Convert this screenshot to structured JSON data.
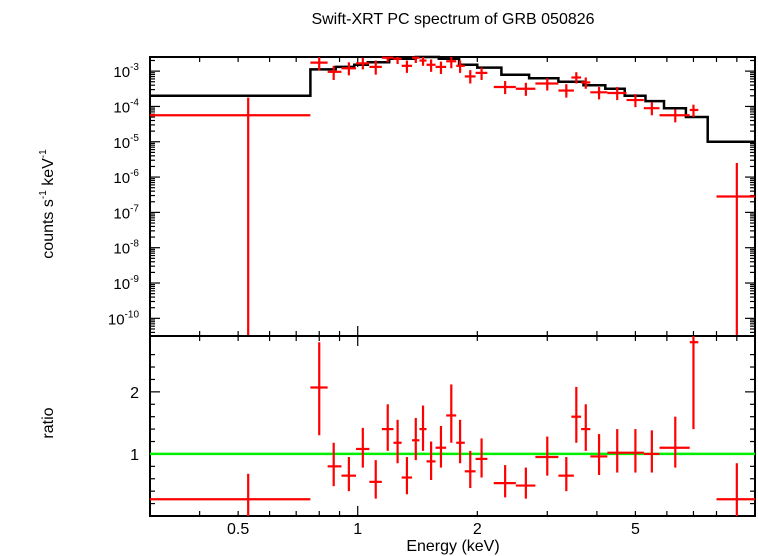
{
  "chart_data": [
    {
      "type": "scatter",
      "panel": "spectrum",
      "title": "Swift-XRT PC spectrum of GRB 050826",
      "ylabel_base": "counts s",
      "ylabel_sup1": "-1",
      "ylabel_mid": " keV",
      "ylabel_sup2": "-1",
      "x_scale": "log",
      "y_scale": "log",
      "xlim": [
        0.3,
        10.0
      ],
      "ylim_log10": [
        -10.5,
        -2.6
      ],
      "y_ticks": [
        {
          "base": "10",
          "exp": "-3",
          "log10": -3
        },
        {
          "base": "10",
          "exp": "-4",
          "log10": -4
        },
        {
          "base": "10",
          "exp": "-5",
          "log10": -5
        },
        {
          "base": "10",
          "exp": "-6",
          "log10": -6
        },
        {
          "base": "10",
          "exp": "-7",
          "log10": -7
        },
        {
          "base": "10",
          "exp": "-8",
          "log10": -8
        },
        {
          "base": "10",
          "exp": "-9",
          "log10": -9
        },
        {
          "base": "10",
          "exp": "-10",
          "log10": -10
        }
      ],
      "data_color": "#ff0000",
      "model_color": "#000000",
      "model_step": [
        [
          0.3,
          -3.7
        ],
        [
          0.76,
          -2.95
        ],
        [
          0.88,
          -2.88
        ],
        [
          0.98,
          -2.82
        ],
        [
          1.06,
          -2.75
        ],
        [
          1.2,
          -2.65
        ],
        [
          1.4,
          -2.6
        ],
        [
          1.6,
          -2.65
        ],
        [
          1.8,
          -2.82
        ],
        [
          2.0,
          -2.9
        ],
        [
          2.3,
          -3.1
        ],
        [
          2.7,
          -3.2
        ],
        [
          3.2,
          -3.3
        ],
        [
          3.7,
          -3.4
        ],
        [
          4.2,
          -3.5
        ],
        [
          4.7,
          -3.7
        ],
        [
          5.3,
          -3.85
        ],
        [
          5.9,
          -4.05
        ],
        [
          6.7,
          -4.3
        ],
        [
          7.6,
          -5.0
        ],
        [
          10.0,
          -5.0
        ]
      ],
      "points": [
        {
          "x": 0.53,
          "xlo": 0.3,
          "xhi": 0.76,
          "y": -4.25,
          "ylo": -10.5,
          "yhi": -3.75
        },
        {
          "x": 0.8,
          "xlo": 0.76,
          "xhi": 0.84,
          "y": -2.76,
          "ylo": -2.98,
          "yhi": -2.6
        },
        {
          "x": 0.87,
          "xlo": 0.84,
          "xhi": 0.91,
          "y": -3.02,
          "ylo": -3.25,
          "yhi": -2.85
        },
        {
          "x": 0.95,
          "xlo": 0.91,
          "xhi": 0.99,
          "y": -2.92,
          "ylo": -3.12,
          "yhi": -2.75
        },
        {
          "x": 1.03,
          "xlo": 0.99,
          "xhi": 1.07,
          "y": -2.78,
          "ylo": -2.95,
          "yhi": -2.62
        },
        {
          "x": 1.11,
          "xlo": 1.07,
          "xhi": 1.15,
          "y": -2.88,
          "ylo": -3.1,
          "yhi": -2.7
        },
        {
          "x": 1.19,
          "xlo": 1.15,
          "xhi": 1.23,
          "y": -2.62,
          "ylo": -2.75,
          "yhi": -2.6
        },
        {
          "x": 1.26,
          "xlo": 1.23,
          "xhi": 1.29,
          "y": -2.65,
          "ylo": -2.8,
          "yhi": -2.6
        },
        {
          "x": 1.33,
          "xlo": 1.29,
          "xhi": 1.37,
          "y": -2.85,
          "ylo": -3.05,
          "yhi": -2.7
        },
        {
          "x": 1.4,
          "xlo": 1.37,
          "xhi": 1.43,
          "y": -2.62,
          "ylo": -2.77,
          "yhi": -2.6
        },
        {
          "x": 1.46,
          "xlo": 1.43,
          "xhi": 1.49,
          "y": -2.7,
          "ylo": -2.85,
          "yhi": -2.6
        },
        {
          "x": 1.53,
          "xlo": 1.49,
          "xhi": 1.57,
          "y": -2.82,
          "ylo": -3.02,
          "yhi": -2.67
        },
        {
          "x": 1.62,
          "xlo": 1.57,
          "xhi": 1.67,
          "y": -2.88,
          "ylo": -3.08,
          "yhi": -2.73
        },
        {
          "x": 1.72,
          "xlo": 1.67,
          "xhi": 1.77,
          "y": -2.72,
          "ylo": -2.92,
          "yhi": -2.6
        },
        {
          "x": 1.81,
          "xlo": 1.77,
          "xhi": 1.86,
          "y": -2.85,
          "ylo": -3.05,
          "yhi": -2.7
        },
        {
          "x": 1.92,
          "xlo": 1.86,
          "xhi": 1.98,
          "y": -3.15,
          "ylo": -3.35,
          "yhi": -2.97
        },
        {
          "x": 2.05,
          "xlo": 1.98,
          "xhi": 2.12,
          "y": -3.05,
          "ylo": -3.25,
          "yhi": -2.9
        },
        {
          "x": 2.35,
          "xlo": 2.2,
          "xhi": 2.5,
          "y": -3.45,
          "ylo": -3.65,
          "yhi": -3.28
        },
        {
          "x": 2.65,
          "xlo": 2.5,
          "xhi": 2.8,
          "y": -3.5,
          "ylo": -3.7,
          "yhi": -3.33
        },
        {
          "x": 3.0,
          "xlo": 2.8,
          "xhi": 3.2,
          "y": -3.35,
          "ylo": -3.55,
          "yhi": -3.2
        },
        {
          "x": 3.35,
          "xlo": 3.2,
          "xhi": 3.5,
          "y": -3.55,
          "ylo": -3.75,
          "yhi": -3.37
        },
        {
          "x": 3.55,
          "xlo": 3.45,
          "xhi": 3.65,
          "y": -3.18,
          "ylo": -3.35,
          "yhi": -3.03
        },
        {
          "x": 3.75,
          "xlo": 3.65,
          "xhi": 3.85,
          "y": -3.32,
          "ylo": -3.5,
          "yhi": -3.18
        },
        {
          "x": 4.05,
          "xlo": 3.85,
          "xhi": 4.25,
          "y": -3.6,
          "ylo": -3.8,
          "yhi": -3.45
        },
        {
          "x": 4.5,
          "xlo": 4.25,
          "xhi": 4.75,
          "y": -3.62,
          "ylo": -3.82,
          "yhi": -3.45
        },
        {
          "x": 5.0,
          "xlo": 4.75,
          "xhi": 5.25,
          "y": -3.82,
          "ylo": -4.02,
          "yhi": -3.65
        },
        {
          "x": 5.5,
          "xlo": 5.25,
          "xhi": 5.75,
          "y": -4.05,
          "ylo": -4.25,
          "yhi": -3.88
        },
        {
          "x": 6.3,
          "xlo": 5.75,
          "xhi": 6.85,
          "y": -4.25,
          "ylo": -4.45,
          "yhi": -4.08
        },
        {
          "x": 7.0,
          "xlo": 6.85,
          "xhi": 7.2,
          "y": -4.1,
          "ylo": -4.3,
          "yhi": -3.95
        },
        {
          "x": 9.0,
          "xlo": 8.0,
          "xhi": 10.0,
          "y": -6.55,
          "ylo": -10.5,
          "yhi": -5.6
        }
      ]
    },
    {
      "type": "scatter",
      "panel": "ratio",
      "xlabel": "Energy (keV)",
      "ylabel": "ratio",
      "x_scale": "log",
      "xlim": [
        0.3,
        10.0
      ],
      "ylim": [
        0.0,
        2.9
      ],
      "x_ticks": [
        {
          "label": "0.5",
          "value": 0.5
        },
        {
          "label": "1",
          "value": 1
        },
        {
          "label": "2",
          "value": 2
        },
        {
          "label": "5",
          "value": 5
        }
      ],
      "y_ticks": [
        {
          "label": "1",
          "value": 1
        },
        {
          "label": "2",
          "value": 2
        }
      ],
      "reference_line": 1.0,
      "reference_color": "#00ee00",
      "data_color": "#ff0000",
      "points": [
        {
          "x": 0.53,
          "xlo": 0.3,
          "xhi": 0.76,
          "y": 0.27,
          "ylo": 0.0,
          "yhi": 0.68
        },
        {
          "x": 0.8,
          "xlo": 0.76,
          "xhi": 0.84,
          "y": 2.07,
          "ylo": 1.3,
          "yhi": 2.8
        },
        {
          "x": 0.87,
          "xlo": 0.84,
          "xhi": 0.91,
          "y": 0.8,
          "ylo": 0.48,
          "yhi": 1.18
        },
        {
          "x": 0.95,
          "xlo": 0.91,
          "xhi": 0.99,
          "y": 0.65,
          "ylo": 0.4,
          "yhi": 0.95
        },
        {
          "x": 1.03,
          "xlo": 0.99,
          "xhi": 1.07,
          "y": 1.08,
          "ylo": 0.78,
          "yhi": 1.42
        },
        {
          "x": 1.11,
          "xlo": 1.07,
          "xhi": 1.15,
          "y": 0.55,
          "ylo": 0.28,
          "yhi": 0.9
        },
        {
          "x": 1.19,
          "xlo": 1.15,
          "xhi": 1.23,
          "y": 1.4,
          "ylo": 1.05,
          "yhi": 1.8
        },
        {
          "x": 1.26,
          "xlo": 1.23,
          "xhi": 1.29,
          "y": 1.18,
          "ylo": 0.85,
          "yhi": 1.55
        },
        {
          "x": 1.33,
          "xlo": 1.29,
          "xhi": 1.37,
          "y": 0.62,
          "ylo": 0.35,
          "yhi": 0.95
        },
        {
          "x": 1.4,
          "xlo": 1.37,
          "xhi": 1.43,
          "y": 1.22,
          "ylo": 0.9,
          "yhi": 1.58
        },
        {
          "x": 1.46,
          "xlo": 1.43,
          "xhi": 1.49,
          "y": 1.4,
          "ylo": 1.05,
          "yhi": 1.78
        },
        {
          "x": 1.53,
          "xlo": 1.49,
          "xhi": 1.57,
          "y": 0.88,
          "ylo": 0.58,
          "yhi": 1.2
        },
        {
          "x": 1.62,
          "xlo": 1.57,
          "xhi": 1.67,
          "y": 1.1,
          "ylo": 0.78,
          "yhi": 1.45
        },
        {
          "x": 1.72,
          "xlo": 1.67,
          "xhi": 1.77,
          "y": 1.62,
          "ylo": 1.18,
          "yhi": 2.12
        },
        {
          "x": 1.81,
          "xlo": 1.77,
          "xhi": 1.86,
          "y": 1.18,
          "ylo": 0.85,
          "yhi": 1.55
        },
        {
          "x": 1.92,
          "xlo": 1.86,
          "xhi": 1.98,
          "y": 0.72,
          "ylo": 0.45,
          "yhi": 1.05
        },
        {
          "x": 2.05,
          "xlo": 1.98,
          "xhi": 2.12,
          "y": 0.92,
          "ylo": 0.62,
          "yhi": 1.25
        },
        {
          "x": 2.35,
          "xlo": 2.2,
          "xhi": 2.5,
          "y": 0.53,
          "ylo": 0.3,
          "yhi": 0.82
        },
        {
          "x": 2.65,
          "xlo": 2.5,
          "xhi": 2.8,
          "y": 0.49,
          "ylo": 0.28,
          "yhi": 0.78
        },
        {
          "x": 3.0,
          "xlo": 2.8,
          "xhi": 3.2,
          "y": 0.95,
          "ylo": 0.65,
          "yhi": 1.28
        },
        {
          "x": 3.35,
          "xlo": 3.2,
          "xhi": 3.5,
          "y": 0.65,
          "ylo": 0.4,
          "yhi": 0.95
        },
        {
          "x": 3.55,
          "xlo": 3.45,
          "xhi": 3.65,
          "y": 1.6,
          "ylo": 1.18,
          "yhi": 2.08
        },
        {
          "x": 3.75,
          "xlo": 3.65,
          "xhi": 3.85,
          "y": 1.4,
          "ylo": 1.05,
          "yhi": 1.8
        },
        {
          "x": 4.05,
          "xlo": 3.85,
          "xhi": 4.25,
          "y": 0.96,
          "ylo": 0.66,
          "yhi": 1.32
        },
        {
          "x": 4.5,
          "xlo": 4.25,
          "xhi": 4.75,
          "y": 1.02,
          "ylo": 0.7,
          "yhi": 1.4
        },
        {
          "x": 5.0,
          "xlo": 4.75,
          "xhi": 5.25,
          "y": 1.02,
          "ylo": 0.7,
          "yhi": 1.4
        },
        {
          "x": 5.5,
          "xlo": 5.25,
          "xhi": 5.75,
          "y": 1.0,
          "ylo": 0.7,
          "yhi": 1.38
        },
        {
          "x": 6.3,
          "xlo": 5.75,
          "xhi": 6.85,
          "y": 1.1,
          "ylo": 0.78,
          "yhi": 1.6
        },
        {
          "x": 7.0,
          "xlo": 6.85,
          "xhi": 7.2,
          "y": 2.8,
          "ylo": 1.4,
          "yhi": 2.9
        },
        {
          "x": 9.0,
          "xlo": 8.0,
          "xhi": 10.0,
          "y": 0.27,
          "ylo": 0.0,
          "yhi": 0.85
        }
      ]
    }
  ]
}
